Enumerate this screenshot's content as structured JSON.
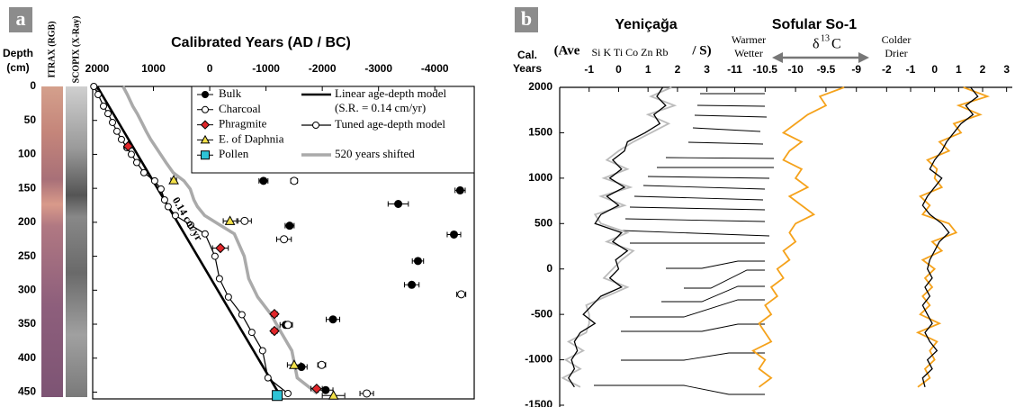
{
  "chart_data": [
    {
      "type": "scatter",
      "label": "a",
      "title": "Calibrated Years (AD / BC)",
      "ylabel": [
        "Depth",
        "(cm)"
      ],
      "core_labels": [
        "ITRAX (RGB)",
        "SCOPIX (X-Ray)"
      ],
      "annotation": "0.14 cm/yr",
      "xlim": [
        2080,
        -4700
      ],
      "xticks": [
        2000,
        1000,
        0,
        -1000,
        -2000,
        -3000,
        -4000
      ],
      "ylim": [
        0,
        460
      ],
      "yticks": [
        0,
        50,
        100,
        150,
        200,
        250,
        300,
        350,
        400,
        450
      ],
      "series": [
        {
          "name": "Bulk",
          "type": "scatter",
          "marker": "circle",
          "color": "#000000",
          "x": [
            -955,
            -4450,
            -3350,
            -1420,
            -4340,
            -3700,
            -3590,
            -2190,
            -1350,
            -1630,
            -2060
          ],
          "values": [
            139,
            153,
            173,
            205,
            218,
            257,
            292,
            343,
            351,
            413,
            447
          ],
          "xerr": [
            80,
            90,
            180,
            80,
            120,
            100,
            130,
            120,
            100,
            100,
            130
          ]
        },
        {
          "name": "Charcoal",
          "type": "scatter",
          "marker": "circle",
          "color": "#ffffff",
          "x": [
            -1500,
            -620,
            -1320,
            -4470,
            -1390,
            -1990,
            -2790
          ],
          "values": [
            139,
            198,
            225,
            306,
            351,
            410,
            452
          ],
          "xerr": [
            60,
            120,
            130,
            80,
            80,
            70,
            120
          ]
        },
        {
          "name": "Phragmite",
          "type": "scatter",
          "marker": "diamond",
          "color": "#e0262a",
          "x": [
            1450,
            -190,
            -1150,
            -1150,
            -1900
          ],
          "values": [
            88,
            238,
            335,
            360,
            445
          ],
          "xerr": [
            60,
            140,
            50,
            50,
            100
          ]
        },
        {
          "name": "E. of Daphnia",
          "type": "scatter",
          "marker": "triangle",
          "color": "#f3e14a",
          "x": [
            640,
            -360,
            -1500,
            -2200
          ],
          "values": [
            138,
            198,
            410,
            455
          ],
          "xerr": [
            50,
            120,
            120,
            200
          ]
        },
        {
          "name": "Pollen",
          "type": "scatter",
          "marker": "square",
          "color": "#2ec4d6",
          "x": [
            -1200
          ],
          "values": [
            455
          ]
        },
        {
          "name": "Linear age-depth model",
          "note": "(S.R. = 0.14 cm/yr)",
          "type": "line",
          "color": "#000000",
          "x": [
            2000,
            -1214
          ],
          "values": [
            0,
            450
          ]
        },
        {
          "name": "Tuned age-depth model",
          "type": "line",
          "marker": "circle",
          "color": "#000000",
          "x": [
            2060,
            1984,
            1888,
            1808,
            1728,
            1649,
            1569,
            1473,
            1393,
            1297,
            1169,
            978,
            866,
            802,
            738,
            610,
            339,
            83,
            -93,
            -173,
            -332,
            -572,
            -748,
            -939,
            -1035,
            -1390
          ],
          "values": [
            0,
            12,
            29,
            40,
            53,
            66,
            78,
            90,
            100,
            112,
            127,
            139,
            151,
            167,
            177,
            190,
            204,
            217,
            250,
            283,
            310,
            336,
            362,
            389,
            429,
            452
          ]
        },
        {
          "name": "520 years shifted",
          "type": "line",
          "color": "#aaaaaa",
          "x": [
            1540,
            1464,
            1368,
            1288,
            1208,
            1129,
            1049,
            953,
            873,
            777,
            649,
            458,
            346,
            282,
            218,
            90,
            -181,
            -437,
            -613,
            -693,
            -852,
            -1092,
            -1268,
            -1459,
            -1555,
            -1910
          ],
          "values": [
            0,
            12,
            29,
            40,
            53,
            66,
            78,
            90,
            100,
            112,
            127,
            139,
            151,
            167,
            177,
            190,
            204,
            217,
            250,
            283,
            310,
            336,
            362,
            389,
            429,
            452
          ]
        }
      ]
    },
    {
      "type": "line",
      "label": "b",
      "titles": [
        "Yeniçağa",
        "Sofular So-1"
      ],
      "ylabel": [
        "Cal.",
        "Years"
      ],
      "ylim": [
        -1500,
        2000
      ],
      "yticks": [
        2000,
        1500,
        1000,
        500,
        0,
        -500,
        -1000,
        -1500
      ],
      "years": [
        2000,
        1900,
        1800,
        1700,
        1600,
        1500,
        1400,
        1300,
        1200,
        1100,
        1000,
        900,
        800,
        700,
        600,
        500,
        400,
        300,
        200,
        100,
        0,
        -100,
        -200,
        -300,
        -400,
        -500,
        -600,
        -700,
        -800,
        -900,
        -1000,
        -1100,
        -1200,
        -1300
      ],
      "axes": [
        {
          "label": [
            "(Ave",
            "Si K Ti Co Zn Rb",
            "/ S)"
          ],
          "xlim": [
            -2,
            3.5
          ],
          "xticks": [
            -1,
            0,
            1,
            2,
            3
          ],
          "series": [
            {
              "color": "#bbbbbb",
              "values": [
                1.8,
                1.1,
                1.9,
                1.0,
                1.7,
                1.1,
                0.5,
                0.0,
                -0.4,
                0.3,
                -0.5,
                0.4,
                -0.6,
                0.2,
                -0.8,
                -0.6,
                0.3,
                -0.4,
                0.5,
                0.1,
                -0.2,
                -0.5,
                0.3,
                -0.4,
                -1.1,
                -1.0,
                -1.0,
                -1.1,
                -1.7,
                -1.2,
                -1.8,
                -1.3,
                -1.9,
                -1.3
              ]
            },
            {
              "color": "#000000",
              "values": [
                1.5,
                1.3,
                1.6,
                1.2,
                1.4,
                0.9,
                0.3,
                0.2,
                -0.2,
                0.1,
                -0.3,
                0.2,
                -0.4,
                0.0,
                -0.6,
                -0.8,
                0.1,
                -0.2,
                0.3,
                -0.1,
                0.0,
                -0.3,
                0.1,
                -0.6,
                -0.9,
                -1.2,
                -0.8,
                -1.3,
                -1.5,
                -1.4,
                -1.6,
                -1.5,
                -1.7,
                -1.5
              ]
            }
          ]
        },
        {
          "label_left": [
            "Warmer",
            "Wetter"
          ],
          "symbol": [
            "δ",
            "13",
            "C"
          ],
          "label_right": [
            "Colder",
            "Drier"
          ],
          "xlim": [
            -11.2,
            -8.7
          ],
          "xticks": [
            -11,
            -10.5,
            -10,
            -9.5,
            -9
          ],
          "series": [
            {
              "color": "#f5a21b",
              "values": [
                -9.2,
                -9.6,
                -9.5,
                -9.8,
                -10.0,
                -10.2,
                -9.9,
                -10.1,
                -10.2,
                -9.9,
                -10.0,
                -9.8,
                -10.1,
                -9.9,
                -9.7,
                -10.0,
                -10.1,
                -10.0,
                -10.2,
                -10.1,
                -10.3,
                -10.2,
                -10.4,
                -10.3,
                -10.5,
                -10.4,
                -10.6,
                -10.5,
                -10.4,
                -10.7,
                -10.5,
                -10.6,
                -10.4,
                -10.6
              ]
            }
          ]
        },
        {
          "xlim": [
            -2.2,
            3.2
          ],
          "xticks": [
            -2,
            -1,
            0,
            1,
            2,
            3
          ],
          "series": [
            {
              "color": "#f5a21b",
              "values": [
                1.2,
                2.2,
                1.0,
                1.9,
                0.8,
                1.1,
                0.2,
                0.6,
                -0.3,
                0.1,
                0.0,
                0.3,
                -0.6,
                -0.2,
                -0.5,
                0.6,
                0.9,
                -0.1,
                0.3,
                -0.5,
                0.0,
                -0.4,
                -0.1,
                -0.5,
                -0.2,
                -0.6,
                0.2,
                -0.7,
                0.1,
                -0.2,
                0.0,
                -0.4,
                -0.2,
                -0.7
              ]
            },
            {
              "color": "#000000",
              "values": [
                1.5,
                1.8,
                1.3,
                1.6,
                1.1,
                0.8,
                0.5,
                0.3,
                0.0,
                -0.2,
                0.3,
                0.0,
                -0.3,
                -0.5,
                -0.2,
                0.3,
                0.6,
                0.2,
                0.0,
                -0.2,
                -0.3,
                -0.1,
                -0.4,
                -0.2,
                -0.5,
                -0.3,
                -0.1,
                -0.4,
                -0.2,
                0.1,
                -0.3,
                -0.1,
                -0.5,
                -0.4
              ]
            }
          ]
        }
      ]
    }
  ]
}
